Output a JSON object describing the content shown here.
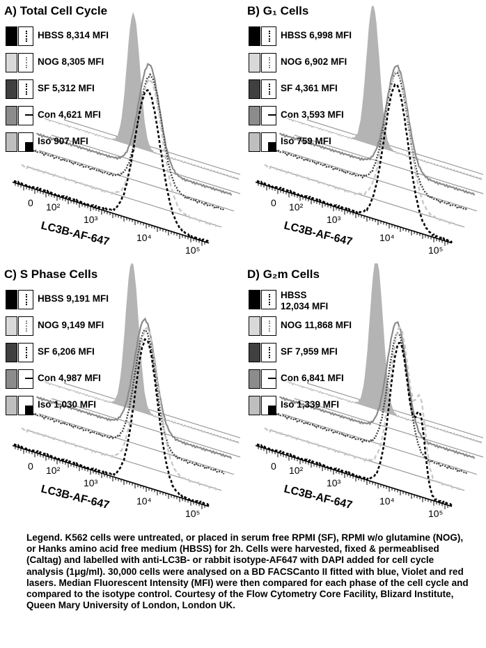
{
  "panels": [
    {
      "letter": "A)",
      "title": "Total Cell Cycle",
      "legend": [
        {
          "label": "HBSS 8,314 MFI",
          "mfi": 8314
        },
        {
          "label": "NOG 8,305 MFI",
          "mfi": 8305
        },
        {
          "label": "SF 5,312 MFI",
          "mfi": 5312
        },
        {
          "label": "Con 4,621 MFI",
          "mfi": 4621
        },
        {
          "label": "Iso 907 MFI",
          "mfi": 907
        }
      ]
    },
    {
      "letter": "B)",
      "title": "G₁ Cells",
      "legend": [
        {
          "label": "HBSS 6,998 MFI",
          "mfi": 6998
        },
        {
          "label": "NOG 6,902 MFI",
          "mfi": 6902
        },
        {
          "label": "SF 4,361 MFI",
          "mfi": 4361
        },
        {
          "label": "Con 3,593 MFI",
          "mfi": 3593
        },
        {
          "label": "Iso 759 MFI",
          "mfi": 759
        }
      ]
    },
    {
      "letter": "C)",
      "title": "S Phase Cells",
      "legend": [
        {
          "label": "HBSS 9,191 MFI",
          "mfi": 9191
        },
        {
          "label": "NOG 9,149 MFI",
          "mfi": 9149
        },
        {
          "label": "SF 6,206 MFI",
          "mfi": 6206
        },
        {
          "label": "Con 4,987 MFI",
          "mfi": 4987
        },
        {
          "label": "Iso 1,030 MFI",
          "mfi": 1030
        }
      ]
    },
    {
      "letter": "D)",
      "title": "G₂m Cells",
      "legend": [
        {
          "label": "HBSS 12,034 MFI",
          "mfi": 12034
        },
        {
          "label": "NOG 11,868 MFI",
          "mfi": 11868
        },
        {
          "label": "SF 7,959 MFI",
          "mfi": 7959
        },
        {
          "label": "Con 6,841 MFI",
          "mfi": 6841
        },
        {
          "label": "Iso 1,339 MFI",
          "mfi": 1339
        }
      ]
    }
  ],
  "chart_data": {
    "type": "line",
    "xlabel": "LC3B-AF-647",
    "ylabel": "",
    "x_scale": "log",
    "xlim": [
      0,
      200000
    ],
    "x_ticks": [
      "0",
      "10²",
      "10³",
      "10⁴",
      "10⁵"
    ],
    "series": [
      {
        "name": "HBSS",
        "color": "#000000",
        "line": "dashed-black"
      },
      {
        "name": "NOG",
        "color": "#c8c8c8",
        "line": "dashed-light"
      },
      {
        "name": "SF",
        "color": "#3c3c3c",
        "line": "dotted-dark"
      },
      {
        "name": "Con",
        "color": "#8a8a8a",
        "line": "solid-grey"
      },
      {
        "name": "Iso",
        "color": "#b0b0b0",
        "line": "filled"
      }
    ],
    "grid": false,
    "legend": "left"
  },
  "swatch_colors": [
    "#000000",
    "#d9d9d9",
    "#404040",
    "#8c8c8c",
    "#bfbfbf"
  ],
  "caption": "Legend. K562 cells were untreated, or placed in serum free RPMI (SF), RPMI w/o glutamine (NOG), or Hanks amino acid free medium (HBSS) for 2h. Cells were harvested, fixed & permeablised (Caltag) and labelled with anti-LC3B- or rabbit isotype-AF647 with DAPI added for cell cycle analysis (1μg/ml). 30,000 cells were analysed on a BD FACSCanto II fitted with blue, Violet and red lasers. Median Fluorescent Intensity (MFI) were then compared for each phase of the cell cycle and compared to the isotype control. Courtesy of the Flow Cytometry Core Facility, Blizard Institute, Queen Mary University of London, London UK."
}
